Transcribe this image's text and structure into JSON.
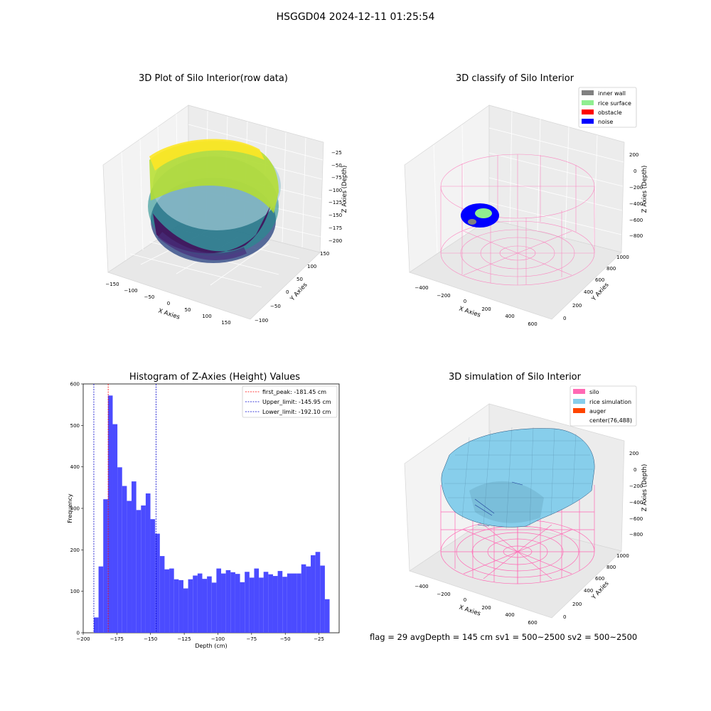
{
  "figure": {
    "title": "HSGGD04 2024-12-11 01:25:54",
    "footer": "flag = 29  avgDepth = 145 cm  sv1 = 500~2500  sv2 = 500~2500"
  },
  "colors": {
    "histogram_bar": "#4b4bff",
    "first_peak_line": "#ff0000",
    "limit_lines": "#0000cc",
    "silo_wire": "#ff69b4",
    "rice_surface_fill": "#87ceeb",
    "noise_blue": "#0000ff",
    "rice_green": "#90ee90",
    "inner_wall_gray": "#808080",
    "obstacle_red": "#ff0000",
    "auger_orange": "#ff4500"
  },
  "panels": {
    "p1": {
      "title": "3D Plot of Silo Interior(row data)",
      "xlabel": "X Axies",
      "ylabel": "Y Axies",
      "zlabel": "Z Axies (Depth)",
      "xticks": [
        "−150",
        "−100",
        "−50",
        "0",
        "50",
        "100",
        "150"
      ],
      "yticks": [
        "−100",
        "−50",
        "0",
        "50",
        "100",
        "150"
      ],
      "zticks": [
        "−25",
        "−50",
        "−75",
        "−100",
        "−125",
        "−150",
        "−175",
        "−200"
      ],
      "colormap": "viridis"
    },
    "p2": {
      "title": "3D classify of Silo Interior",
      "xlabel": "X Axies",
      "ylabel": "Y Axies",
      "zlabel": "Z Axies (Depth)",
      "xticks": [
        "−400",
        "−200",
        "0",
        "200",
        "400",
        "600"
      ],
      "yticks": [
        "0",
        "200",
        "400",
        "600",
        "800",
        "1000"
      ],
      "zticks": [
        "200",
        "0",
        "−200",
        "−400",
        "−600",
        "−800"
      ],
      "legend": [
        "inner wall",
        "rice surface",
        "obstacle",
        "noise"
      ],
      "legend_colors": [
        "#808080",
        "#90ee90",
        "#ff0000",
        "#0000ff"
      ]
    },
    "p3": {
      "title": "Histogram of Z-Axies (Height) Values",
      "xlabel": "Depth (cm)",
      "ylabel": "Frequency",
      "legend": [
        "first_peak: -181.45 cm",
        "Upper_limit: -145.95 cm",
        "Lower_limit: -192.10 cm"
      ]
    },
    "p4": {
      "title": "3D simulation of Silo Interior",
      "xlabel": "X Axies",
      "ylabel": "Y Axies",
      "zlabel": "Z Axies (Depth)",
      "xticks": [
        "−400",
        "−200",
        "0",
        "200",
        "400",
        "600"
      ],
      "yticks": [
        "0",
        "200",
        "400",
        "600",
        "800",
        "1000"
      ],
      "zticks": [
        "200",
        "0",
        "−200",
        "−400",
        "−600",
        "−800"
      ],
      "legend": [
        "silo",
        "rice simulation",
        "auger",
        "center(76,488)"
      ],
      "legend_colors": [
        "#ff69b4",
        "#87ceeb",
        "#ff4500",
        "none"
      ]
    }
  },
  "chart_data": [
    {
      "type": "scatter",
      "title": "3D Plot of Silo Interior(row data)",
      "xlabel": "X Axies",
      "ylabel": "Y Axies",
      "zlabel": "Z Axies (Depth)",
      "xlim": [
        -150,
        150
      ],
      "ylim": [
        -100,
        150
      ],
      "zlim": [
        -200,
        -25
      ],
      "colormap": "viridis",
      "note": "dense 3D point cloud of silo interior scan"
    },
    {
      "type": "scatter",
      "title": "3D classify of Silo Interior",
      "xlabel": "X Axies",
      "ylabel": "Y Axies",
      "zlabel": "Z Axies (Depth)",
      "xlim": [
        -400,
        600
      ],
      "ylim": [
        0,
        1000
      ],
      "zlim": [
        -800,
        200
      ],
      "series": [
        {
          "name": "inner wall",
          "color": "#808080"
        },
        {
          "name": "rice surface",
          "color": "#90ee90"
        },
        {
          "name": "obstacle",
          "color": "#ff0000"
        },
        {
          "name": "noise",
          "color": "#0000ff"
        }
      ],
      "legend_position": "top-right"
    },
    {
      "type": "bar",
      "title": "Histogram of Z-Axies (Height) Values",
      "xlabel": "Depth (cm)",
      "ylabel": "Frequency",
      "xlim": [
        -200,
        -10
      ],
      "ylim": [
        0,
        600
      ],
      "xticks": [
        -200,
        -175,
        -150,
        -125,
        -100,
        -75,
        -50,
        -25
      ],
      "yticks": [
        0,
        100,
        200,
        300,
        400,
        500,
        600
      ],
      "bin_start": -192.1,
      "bin_width": 3.5,
      "values": [
        37,
        160,
        322,
        572,
        503,
        399,
        354,
        318,
        365,
        296,
        307,
        336,
        274,
        239,
        185,
        153,
        155,
        129,
        127,
        107,
        129,
        138,
        143,
        130,
        136,
        121,
        155,
        143,
        151,
        146,
        142,
        122,
        147,
        133,
        155,
        133,
        147,
        141,
        137,
        149,
        135,
        143,
        143,
        143,
        165,
        160,
        187,
        195,
        162,
        81
      ],
      "vlines": [
        {
          "label": "first_peak: -181.45 cm",
          "x": -181.45,
          "color": "#ff0000"
        },
        {
          "label": "Upper_limit: -145.95 cm",
          "x": -145.95,
          "color": "#0000cc"
        },
        {
          "label": "Lower_limit: -192.10 cm",
          "x": -192.1,
          "color": "#0000cc"
        }
      ],
      "legend_position": "top-right"
    },
    {
      "type": "area",
      "title": "3D simulation of Silo Interior",
      "xlabel": "X Axies",
      "ylabel": "Y Axies",
      "zlabel": "Z Axies (Depth)",
      "xlim": [
        -400,
        600
      ],
      "ylim": [
        0,
        1000
      ],
      "zlim": [
        -800,
        200
      ],
      "series": [
        {
          "name": "silo",
          "color": "#ff69b4"
        },
        {
          "name": "rice simulation",
          "color": "#87ceeb"
        },
        {
          "name": "auger",
          "color": "#ff4500"
        },
        {
          "name": "center(76,488)"
        }
      ],
      "legend_position": "top-right"
    }
  ]
}
